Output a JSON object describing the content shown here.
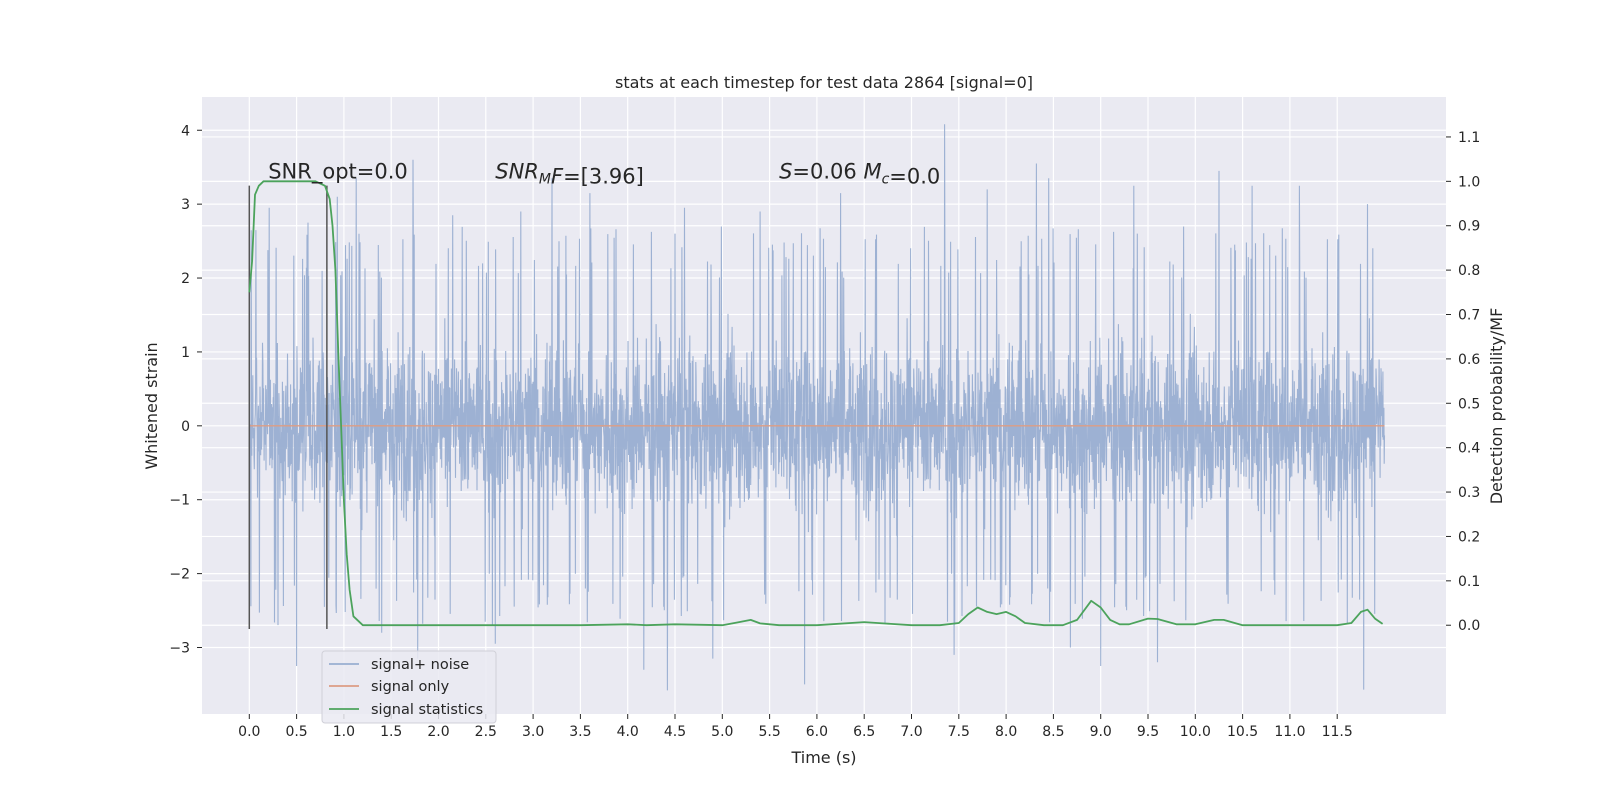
{
  "chart_data": {
    "type": "line",
    "title": "stats at each timestep for test data 2864 [signal=0]",
    "xlabel": "Time (s)",
    "ylabel": "Whitened strain",
    "y2label": "Detection probability/MF",
    "xlim": [
      -0.5,
      12.65
    ],
    "ylim": [
      -3.9,
      4.45
    ],
    "y2lim": [
      -0.2,
      1.19
    ],
    "xticks": [
      0.0,
      0.5,
      1.0,
      1.5,
      2.0,
      2.5,
      3.0,
      3.5,
      4.0,
      4.5,
      5.0,
      5.5,
      6.0,
      6.5,
      7.0,
      7.5,
      8.0,
      8.5,
      9.0,
      9.5,
      10.0,
      10.5,
      11.0,
      11.5
    ],
    "xtick_labels": [
      "0.0",
      "0.5",
      "1.0",
      "1.5",
      "2.0",
      "2.5",
      "3.0",
      "3.5",
      "4.0",
      "4.5",
      "5.0",
      "5.5",
      "6.0",
      "6.5",
      "7.0",
      "7.5",
      "8.0",
      "8.5",
      "9.0",
      "9.5",
      "10.0",
      "10.5",
      "11.0",
      "11.5"
    ],
    "yticks": [
      -3,
      -2,
      -1,
      0,
      1,
      2,
      3,
      4
    ],
    "ytick_labels": [
      "−3",
      "−2",
      "−1",
      "0",
      "1",
      "2",
      "3",
      "4"
    ],
    "y2ticks": [
      0.0,
      0.1,
      0.2,
      0.3,
      0.4,
      0.5,
      0.6,
      0.7,
      0.8,
      0.9,
      1.0,
      1.1
    ],
    "y2tick_labels": [
      "0.0",
      "0.1",
      "0.2",
      "0.3",
      "0.4",
      "0.5",
      "0.6",
      "0.7",
      "0.8",
      "0.9",
      "1.0",
      "1.1"
    ],
    "grid": true,
    "legend_position": "lower-left",
    "annotations": [
      {
        "text": "SNR_opt=0.0",
        "x": 0.2,
        "y": 3.35
      },
      {
        "text": "SNR_MF=[3.96]",
        "x": 2.6,
        "y": 3.35
      },
      {
        "text": "S=0.06   M_c=0.0",
        "x": 5.6,
        "y": 3.35
      }
    ],
    "vlines": [
      {
        "x": 0.0,
        "y": [
          -2.75,
          3.25
        ],
        "color": "#555555"
      },
      {
        "x": 0.82,
        "y": [
          -2.75,
          3.25
        ],
        "color": "#555555"
      }
    ],
    "series": [
      {
        "name": "signal+ noise",
        "axis": "left",
        "color": "#99aed1",
        "duration": 12.0,
        "band_core": [
          -1.55,
          1.45
        ],
        "typical_peak": 2.3,
        "typical_trough": -2.2,
        "max": 4.08,
        "min": -3.58,
        "spikes": [
          {
            "x": 0.21,
            "y": 2.95
          },
          {
            "x": 0.5,
            "y": -3.25
          },
          {
            "x": 0.62,
            "y": 2.75
          },
          {
            "x": 0.93,
            "y": 3.1
          },
          {
            "x": 1.13,
            "y": 3.35
          },
          {
            "x": 1.4,
            "y": -2.8
          },
          {
            "x": 1.73,
            "y": 3.6
          },
          {
            "x": 1.78,
            "y": -3.15
          },
          {
            "x": 2.15,
            "y": 2.85
          },
          {
            "x": 2.6,
            "y": -2.95
          },
          {
            "x": 2.87,
            "y": 2.9
          },
          {
            "x": 3.2,
            "y": 3.35
          },
          {
            "x": 3.6,
            "y": 3.15
          },
          {
            "x": 4.17,
            "y": -3.3
          },
          {
            "x": 4.42,
            "y": -3.58
          },
          {
            "x": 4.6,
            "y": 2.95
          },
          {
            "x": 4.9,
            "y": -3.15
          },
          {
            "x": 5.4,
            "y": 2.9
          },
          {
            "x": 5.87,
            "y": -3.5
          },
          {
            "x": 6.25,
            "y": 3.15
          },
          {
            "x": 7.35,
            "y": 4.08
          },
          {
            "x": 7.45,
            "y": -3.1
          },
          {
            "x": 7.8,
            "y": 3.2
          },
          {
            "x": 8.32,
            "y": 3.55
          },
          {
            "x": 8.45,
            "y": 3.35
          },
          {
            "x": 8.68,
            "y": -3.0
          },
          {
            "x": 9.0,
            "y": -3.25
          },
          {
            "x": 9.35,
            "y": 3.25
          },
          {
            "x": 9.6,
            "y": -3.2
          },
          {
            "x": 10.25,
            "y": 3.45
          },
          {
            "x": 10.6,
            "y": 3.25
          },
          {
            "x": 11.1,
            "y": 3.25
          },
          {
            "x": 11.78,
            "y": -3.57
          },
          {
            "x": 11.82,
            "y": 3.0
          }
        ]
      },
      {
        "name": "signal only",
        "axis": "left",
        "color": "#dd9d85",
        "x": [
          0.0,
          12.0
        ],
        "values": [
          0.0,
          0.0
        ]
      },
      {
        "name": "signal statistics",
        "axis": "right",
        "color": "#4ca35c",
        "x": [
          0.0,
          0.03,
          0.06,
          0.1,
          0.15,
          0.2,
          0.3,
          0.5,
          0.7,
          0.8,
          0.85,
          0.88,
          0.91,
          0.94,
          0.97,
          1.0,
          1.03,
          1.06,
          1.1,
          1.2,
          1.5,
          2.0,
          3.0,
          3.5,
          4.0,
          4.2,
          4.5,
          5.0,
          5.15,
          5.3,
          5.4,
          5.6,
          6.0,
          6.5,
          6.7,
          7.0,
          7.3,
          7.5,
          7.6,
          7.7,
          7.8,
          7.9,
          8.0,
          8.1,
          8.2,
          8.4,
          8.6,
          8.75,
          8.9,
          9.0,
          9.1,
          9.2,
          9.3,
          9.5,
          9.6,
          9.8,
          10.0,
          10.2,
          10.3,
          10.5,
          11.0,
          11.2,
          11.5,
          11.65,
          11.75,
          11.82,
          11.9,
          11.98
        ],
        "values": [
          0.75,
          0.82,
          0.97,
          0.99,
          1.0,
          1.0,
          1.0,
          1.0,
          1.0,
          0.99,
          0.96,
          0.9,
          0.8,
          0.62,
          0.45,
          0.28,
          0.16,
          0.08,
          0.02,
          0.0,
          0.0,
          0.0,
          0.0,
          0.0,
          0.002,
          0.0,
          0.002,
          0.0,
          0.006,
          0.012,
          0.004,
          0.0,
          0.0,
          0.007,
          0.004,
          0.0,
          0.0,
          0.005,
          0.025,
          0.04,
          0.03,
          0.025,
          0.03,
          0.02,
          0.005,
          0.0,
          0.0,
          0.012,
          0.055,
          0.04,
          0.012,
          0.002,
          0.002,
          0.015,
          0.014,
          0.002,
          0.002,
          0.012,
          0.012,
          0.0,
          0.0,
          0.0,
          0.0,
          0.005,
          0.03,
          0.035,
          0.015,
          0.003
        ]
      }
    ]
  }
}
